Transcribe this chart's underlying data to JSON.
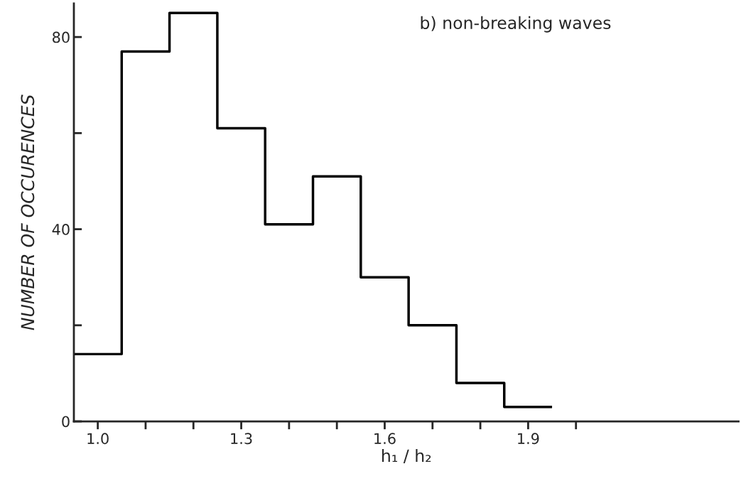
{
  "chart_data": {
    "type": "histogram",
    "title": "b) non-breaking waves",
    "xlabel": "h₁ / h₂",
    "ylabel": "NUMBER OF OCCURENCES",
    "bins": [
      0.95,
      1.05,
      1.15,
      1.25,
      1.35,
      1.45,
      1.55,
      1.65,
      1.75,
      1.85,
      1.95
    ],
    "values": [
      14,
      77,
      85,
      61,
      41,
      51,
      30,
      20,
      8,
      3
    ],
    "color": "#000000",
    "xlim": [
      0.95,
      2.34
    ],
    "ylim": [
      0,
      87
    ],
    "xticks": [
      {
        "value": 1.0,
        "label": "1.0"
      },
      {
        "value": 1.1,
        "label": null
      },
      {
        "value": 1.2,
        "label": null
      },
      1.3,
      {
        "value": 1.4,
        "label": null
      },
      {
        "value": 1.5,
        "label": null
      },
      1.6,
      {
        "value": 1.7,
        "label": null
      },
      {
        "value": 1.8,
        "label": null
      },
      1.9,
      {
        "value": 2.0,
        "label": null
      }
    ],
    "yticks": [
      0,
      {
        "value": 20,
        "label": null
      },
      40,
      {
        "value": 60,
        "label": null
      },
      80
    ],
    "grid": false,
    "legend": false
  }
}
